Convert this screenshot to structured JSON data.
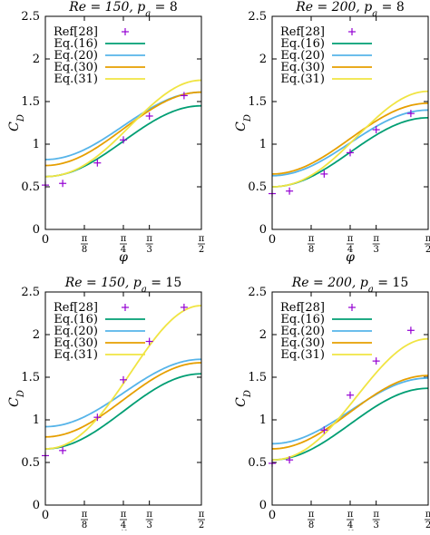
{
  "figure": {
    "xlabel": "φ",
    "ylabel_main": "C",
    "ylabel_sub": "D"
  },
  "chart_data": [
    {
      "type": "line",
      "title": "Re = 150, p_a = 8",
      "title_parts": {
        "re": "Re = 150,",
        "p": "p",
        "sub": "a",
        "rest": " = 8"
      },
      "xlabel": "φ",
      "ylabel": "C_D",
      "xlim": [
        0,
        1.5708
      ],
      "ylim": [
        0,
        2.5
      ],
      "yticks": [
        "0",
        "0.5",
        "1",
        "1.5",
        "2",
        "2.5"
      ],
      "xticks": [
        {
          "v": 0,
          "num": "0",
          "den": ""
        },
        {
          "v": 0.3927,
          "num": "π",
          "den": "8"
        },
        {
          "v": 0.7854,
          "num": "π",
          "den": "4"
        },
        {
          "v": 1.0472,
          "num": "π",
          "den": "3"
        },
        {
          "v": 1.5708,
          "num": "π",
          "den": "2"
        }
      ],
      "legend_position": "top-left",
      "reference": {
        "name": "Ref[28]",
        "color": "#9400d3",
        "x": [
          0,
          0.1745,
          0.5236,
          0.7854,
          1.0472,
          1.3963
        ],
        "y": [
          0.52,
          0.54,
          0.78,
          1.05,
          1.33,
          1.57
        ]
      },
      "series": [
        {
          "name": "Eq.(16)",
          "color": "#009e73",
          "c": 0.62,
          "a": 0.83,
          "s": 0
        },
        {
          "name": "Eq.(20)",
          "color": "#56b4e9",
          "c": 0.82,
          "a": 0.79,
          "s": 0
        },
        {
          "name": "Eq.(30)",
          "color": "#e69f00",
          "c": 0.75,
          "a": 0.86,
          "s": 0
        },
        {
          "name": "Eq.(31)",
          "color": "#f0e442",
          "c": 0.62,
          "a": 1.13,
          "s": 0.3
        }
      ]
    },
    {
      "type": "line",
      "title": "Re = 200, p_a = 8",
      "title_parts": {
        "re": "Re = 200,",
        "p": "p",
        "sub": "a",
        "rest": " = 8"
      },
      "xlabel": "φ",
      "ylabel": "C_D",
      "xlim": [
        0,
        1.5708
      ],
      "ylim": [
        0,
        2.5
      ],
      "yticks": [
        "0",
        "0.5",
        "1",
        "1.5",
        "2",
        "2.5"
      ],
      "xticks": [
        {
          "v": 0,
          "num": "0",
          "den": ""
        },
        {
          "v": 0.3927,
          "num": "π",
          "den": "8"
        },
        {
          "v": 0.7854,
          "num": "π",
          "den": "4"
        },
        {
          "v": 1.0472,
          "num": "π",
          "den": "3"
        },
        {
          "v": 1.5708,
          "num": "π",
          "den": "2"
        }
      ],
      "legend_position": "top-left",
      "reference": {
        "name": "Ref[28]",
        "color": "#9400d3",
        "x": [
          0,
          0.1745,
          0.5236,
          0.7854,
          1.0472,
          1.3963
        ],
        "y": [
          0.42,
          0.45,
          0.65,
          0.9,
          1.17,
          1.36
        ]
      },
      "series": [
        {
          "name": "Eq.(16)",
          "color": "#009e73",
          "c": 0.5,
          "a": 0.81,
          "s": 0
        },
        {
          "name": "Eq.(20)",
          "color": "#56b4e9",
          "c": 0.63,
          "a": 0.77,
          "s": 0
        },
        {
          "name": "Eq.(30)",
          "color": "#e69f00",
          "c": 0.65,
          "a": 0.83,
          "s": 0
        },
        {
          "name": "Eq.(31)",
          "color": "#f0e442",
          "c": 0.5,
          "a": 1.12,
          "s": 0.3
        }
      ]
    },
    {
      "type": "line",
      "title": "Re = 150, p_a = 15",
      "title_parts": {
        "re": "Re = 150,",
        "p": "p",
        "sub": "a",
        "rest": " = 15"
      },
      "xlabel": "φ",
      "ylabel": "C_D",
      "xlim": [
        0,
        1.5708
      ],
      "ylim": [
        0,
        2.5
      ],
      "yticks": [
        "0",
        "0.5",
        "1",
        "1.5",
        "2",
        "2.5"
      ],
      "xticks": [
        {
          "v": 0,
          "num": "0",
          "den": ""
        },
        {
          "v": 0.3927,
          "num": "π",
          "den": "8"
        },
        {
          "v": 0.7854,
          "num": "π",
          "den": "4"
        },
        {
          "v": 1.0472,
          "num": "π",
          "den": "3"
        },
        {
          "v": 1.5708,
          "num": "π",
          "den": "2"
        }
      ],
      "legend_position": "top-left",
      "reference": {
        "name": "Ref[28]",
        "color": "#9400d3",
        "x": [
          0,
          0.1745,
          0.5236,
          0.7854,
          1.0472,
          1.3963
        ],
        "y": [
          0.58,
          0.64,
          1.03,
          1.47,
          1.92,
          2.32
        ]
      },
      "series": [
        {
          "name": "Eq.(16)",
          "color": "#009e73",
          "c": 0.66,
          "a": 0.88,
          "s": 0
        },
        {
          "name": "Eq.(20)",
          "color": "#56b4e9",
          "c": 0.92,
          "a": 0.79,
          "s": 0
        },
        {
          "name": "Eq.(30)",
          "color": "#e69f00",
          "c": 0.8,
          "a": 0.87,
          "s": 0
        },
        {
          "name": "Eq.(31)",
          "color": "#f0e442",
          "c": 0.66,
          "a": 1.68,
          "s": 0.3
        }
      ]
    },
    {
      "type": "line",
      "title": "Re = 200, p_a = 15",
      "title_parts": {
        "re": "Re = 200,",
        "p": "p",
        "sub": "a",
        "rest": " = 15"
      },
      "xlabel": "φ",
      "ylabel": "C_D",
      "xlim": [
        0,
        1.5708
      ],
      "ylim": [
        0,
        2.5
      ],
      "yticks": [
        "0",
        "0.5",
        "1",
        "1.5",
        "2",
        "2.5"
      ],
      "xticks": [
        {
          "v": 0,
          "num": "0",
          "den": ""
        },
        {
          "v": 0.3927,
          "num": "π",
          "den": "8"
        },
        {
          "v": 0.7854,
          "num": "π",
          "den": "4"
        },
        {
          "v": 1.0472,
          "num": "π",
          "den": "3"
        },
        {
          "v": 1.5708,
          "num": "π",
          "den": "2"
        }
      ],
      "legend_position": "top-left",
      "reference": {
        "name": "Ref[28]",
        "color": "#9400d3",
        "x": [
          0,
          0.1745,
          0.5236,
          0.7854,
          1.0472,
          1.3963
        ],
        "y": [
          0.49,
          0.53,
          0.88,
          1.29,
          1.69,
          2.05
        ]
      },
      "series": [
        {
          "name": "Eq.(16)",
          "color": "#009e73",
          "c": 0.53,
          "a": 0.84,
          "s": 0
        },
        {
          "name": "Eq.(20)",
          "color": "#56b4e9",
          "c": 0.72,
          "a": 0.77,
          "s": 0
        },
        {
          "name": "Eq.(30)",
          "color": "#e69f00",
          "c": 0.66,
          "a": 0.86,
          "s": 0
        },
        {
          "name": "Eq.(31)",
          "color": "#f0e442",
          "c": 0.53,
          "a": 1.42,
          "s": 0.3
        }
      ]
    }
  ]
}
